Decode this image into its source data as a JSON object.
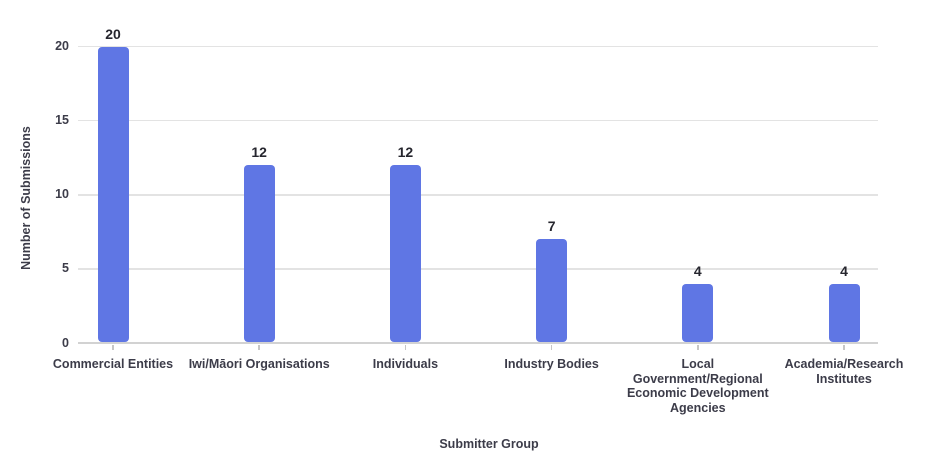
{
  "chart_data": {
    "type": "bar",
    "title": "",
    "xlabel": "Submitter Group",
    "ylabel": "Number of Submissions",
    "categories": [
      "Commercial Entities",
      "Iwi/Māori Organisations",
      "Individuals",
      "Industry Bodies",
      "Local Government/Regional Economic Development Agencies",
      "Academia/Research Institutes"
    ],
    "category_display": [
      "Commercial Entities",
      "Iwi/Māori Organisations",
      "Individuals",
      "Industry Bodies",
      "Local\nGovernment/Regional\nEconomic Development\nAgencies",
      "Academia/Research\nInstitutes"
    ],
    "values": [
      20,
      12,
      12,
      7,
      4,
      4
    ],
    "data_labels": [
      "20",
      "12",
      "12",
      "7",
      "4",
      "4"
    ],
    "yticks": [
      0,
      5,
      10,
      15,
      20
    ],
    "ytick_labels": [
      "0",
      "5",
      "10",
      "15",
      "20"
    ],
    "ylim": [
      0,
      20
    ],
    "grid": true,
    "legend": false
  },
  "colors": {
    "bar_fill": "#5F76E4",
    "gridline": "#E3E3E3",
    "axis_line": "#D2D2D2",
    "tick_mark": "#C6C6C6",
    "value_label_text": "#26262E",
    "axis_text": "#3C3C49"
  }
}
